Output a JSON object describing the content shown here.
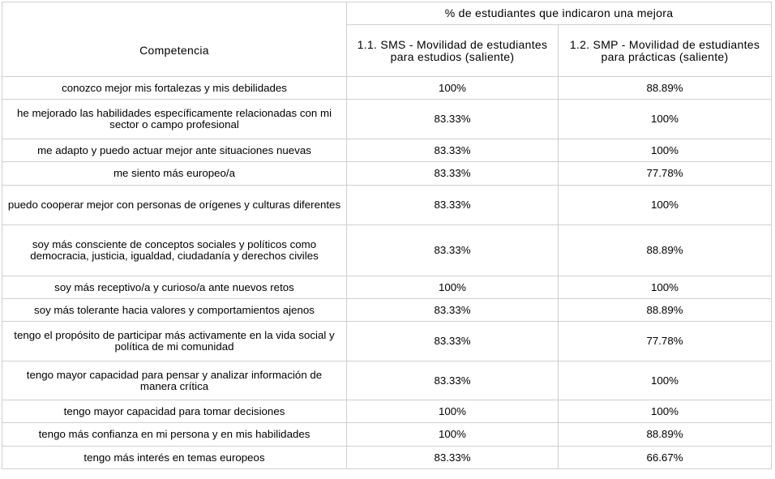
{
  "table": {
    "header": {
      "group_label": "% de estudiantes que indicaron una mejora",
      "competencia_label": "Competencia",
      "col1_label": "1.1. SMS - Movilidad de estudiantes para estudios (saliente)",
      "col2_label": "1.2. SMP - Movilidad de estudiantes para prácticas (saliente)"
    },
    "rows": [
      {
        "competencia": "conozco mejor mis fortalezas y mis debilidades",
        "sms": "100%",
        "smp": "88.89%"
      },
      {
        "competencia": "he mejorado las habilidades específicamente relacionadas con mi sector o campo profesional",
        "sms": "83.33%",
        "smp": "100%"
      },
      {
        "competencia": "me adapto y puedo actuar mejor ante situaciones nuevas",
        "sms": "83.33%",
        "smp": "100%"
      },
      {
        "competencia": "me siento más europeo/a",
        "sms": "83.33%",
        "smp": "77.78%"
      },
      {
        "competencia": "puedo cooperar mejor con personas de orígenes y culturas diferentes",
        "sms": "83.33%",
        "smp": "100%"
      },
      {
        "competencia": "soy más consciente de conceptos sociales y políticos como democracia, justicia, igualdad, ciudadanía y derechos civiles",
        "sms": "83.33%",
        "smp": "88.89%"
      },
      {
        "competencia": "soy más receptivo/a y curioso/a ante nuevos retos",
        "sms": "100%",
        "smp": "100%"
      },
      {
        "competencia": "soy más tolerante hacia valores y comportamientos ajenos",
        "sms": "83.33%",
        "smp": "88.89%"
      },
      {
        "competencia": "tengo el propósito de participar más activamente en la vida social y política de mi comunidad",
        "sms": "83.33%",
        "smp": "77.78%"
      },
      {
        "competencia": "tengo mayor capacidad para pensar y analizar información de manera crítica",
        "sms": "83.33%",
        "smp": "100%"
      },
      {
        "competencia": "tengo mayor capacidad para tomar decisiones",
        "sms": "100%",
        "smp": "100%"
      },
      {
        "competencia": "tengo más confianza en mi persona y en mis habilidades",
        "sms": "100%",
        "smp": "88.89%"
      },
      {
        "competencia": "tengo más interés en temas europeos",
        "sms": "83.33%",
        "smp": "66.67%"
      }
    ]
  }
}
